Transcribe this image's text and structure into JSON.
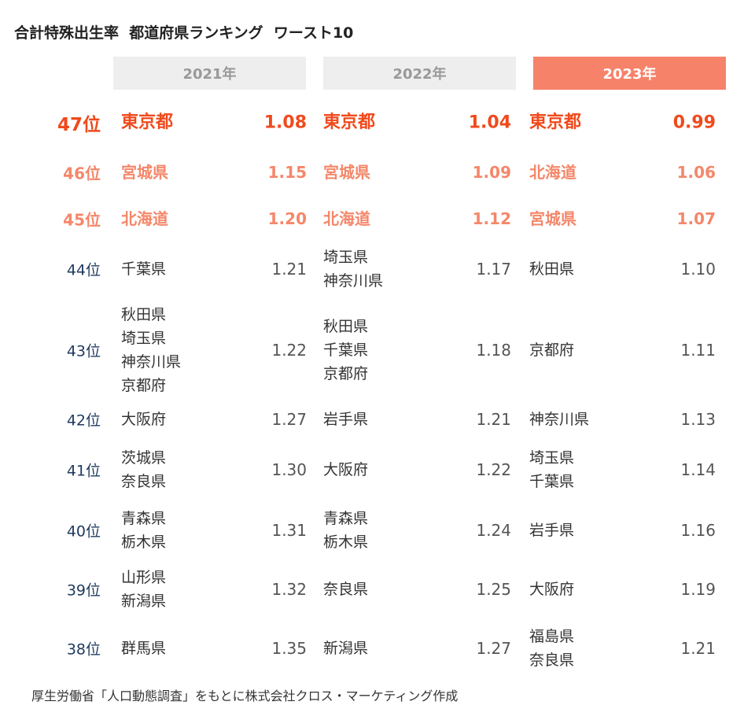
{
  "title": "合計特殊出生率  都道府県ランキング  ワースト10",
  "source": "厚生労働省「人口動態調査」をもとに株式会社クロス・マーケティング作成",
  "colors": {
    "rank_text": "#1f3a5f",
    "highlight_strong": "#f04a1c",
    "highlight_light": "#f4876a",
    "header_inactive_bg": "#eeeeee",
    "header_inactive_text": "#999999",
    "header_active_bg": "#f6826a",
    "header_active_text": "#ffffff"
  },
  "chart_data": {
    "type": "table",
    "years": [
      "2021年",
      "2022年",
      "2023年"
    ],
    "active_year_index": 2,
    "rows": [
      {
        "rank": "47位",
        "cells": [
          {
            "prefs": [
              "東京都"
            ],
            "value": "1.08"
          },
          {
            "prefs": [
              "東京都"
            ],
            "value": "1.04"
          },
          {
            "prefs": [
              "東京都"
            ],
            "value": "0.99"
          }
        ]
      },
      {
        "rank": "46位",
        "cells": [
          {
            "prefs": [
              "宮城県"
            ],
            "value": "1.15"
          },
          {
            "prefs": [
              "宮城県"
            ],
            "value": "1.09"
          },
          {
            "prefs": [
              "北海道"
            ],
            "value": "1.06"
          }
        ]
      },
      {
        "rank": "45位",
        "cells": [
          {
            "prefs": [
              "北海道"
            ],
            "value": "1.20"
          },
          {
            "prefs": [
              "北海道"
            ],
            "value": "1.12"
          },
          {
            "prefs": [
              "宮城県"
            ],
            "value": "1.07"
          }
        ]
      },
      {
        "rank": "44位",
        "cells": [
          {
            "prefs": [
              "千葉県"
            ],
            "value": "1.21"
          },
          {
            "prefs": [
              "埼玉県",
              "神奈川県"
            ],
            "value": "1.17"
          },
          {
            "prefs": [
              "秋田県"
            ],
            "value": "1.10"
          }
        ]
      },
      {
        "rank": "43位",
        "cells": [
          {
            "prefs": [
              "秋田県",
              "埼玉県",
              "神奈川県",
              "京都府"
            ],
            "value": "1.22"
          },
          {
            "prefs": [
              "秋田県",
              "千葉県",
              "京都府"
            ],
            "value": "1.18"
          },
          {
            "prefs": [
              "京都府"
            ],
            "value": "1.11"
          }
        ]
      },
      {
        "rank": "42位",
        "cells": [
          {
            "prefs": [
              "大阪府"
            ],
            "value": "1.27"
          },
          {
            "prefs": [
              "岩手県"
            ],
            "value": "1.21"
          },
          {
            "prefs": [
              "神奈川県"
            ],
            "value": "1.13"
          }
        ]
      },
      {
        "rank": "41位",
        "cells": [
          {
            "prefs": [
              "茨城県",
              "奈良県"
            ],
            "value": "1.30"
          },
          {
            "prefs": [
              "大阪府"
            ],
            "value": "1.22"
          },
          {
            "prefs": [
              "埼玉県",
              "千葉県"
            ],
            "value": "1.14"
          }
        ]
      },
      {
        "rank": "40位",
        "cells": [
          {
            "prefs": [
              "青森県",
              "栃木県"
            ],
            "value": "1.31"
          },
          {
            "prefs": [
              "青森県",
              "栃木県"
            ],
            "value": "1.24"
          },
          {
            "prefs": [
              "岩手県"
            ],
            "value": "1.16"
          }
        ]
      },
      {
        "rank": "39位",
        "cells": [
          {
            "prefs": [
              "山形県",
              "新潟県"
            ],
            "value": "1.32"
          },
          {
            "prefs": [
              "奈良県"
            ],
            "value": "1.25"
          },
          {
            "prefs": [
              "大阪府"
            ],
            "value": "1.19"
          }
        ]
      },
      {
        "rank": "38位",
        "cells": [
          {
            "prefs": [
              "群馬県"
            ],
            "value": "1.35"
          },
          {
            "prefs": [
              "新潟県"
            ],
            "value": "1.27"
          },
          {
            "prefs": [
              "福島県",
              "奈良県"
            ],
            "value": "1.21"
          }
        ]
      }
    ]
  }
}
